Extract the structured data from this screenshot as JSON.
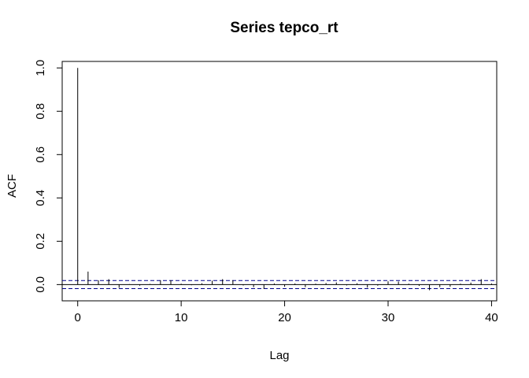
{
  "chart_data": {
    "type": "bar",
    "title": "Series  tepco_rt",
    "xlabel": "Lag",
    "ylabel": "ACF",
    "xlim": [
      -1.5,
      40.5
    ],
    "ylim": [
      -0.075,
      1.03
    ],
    "xticks": [
      0,
      10,
      20,
      30,
      40
    ],
    "yticks": [
      0.0,
      0.2,
      0.4,
      0.6,
      0.8,
      1.0
    ],
    "xtick_labels": [
      "0",
      "10",
      "20",
      "30",
      "40"
    ],
    "ytick_labels": [
      "0.0",
      "0.2",
      "0.4",
      "0.6",
      "0.8",
      "1.0"
    ],
    "confidence_bound": 0.0185,
    "lags": [
      0,
      1,
      2,
      3,
      4,
      5,
      6,
      7,
      8,
      9,
      10,
      11,
      12,
      13,
      14,
      15,
      16,
      17,
      18,
      19,
      20,
      21,
      22,
      23,
      24,
      25,
      26,
      27,
      28,
      29,
      30,
      31,
      32,
      33,
      34,
      35,
      36,
      37,
      38,
      39,
      40
    ],
    "acf": [
      1.0,
      0.06,
      0.02,
      0.025,
      -0.015,
      0.002,
      -0.005,
      0.003,
      0.02,
      0.02,
      0.004,
      -0.003,
      0.006,
      0.018,
      0.025,
      0.02,
      -0.004,
      -0.012,
      -0.02,
      0.005,
      -0.01,
      0.005,
      -0.012,
      0.004,
      0.007,
      0.01,
      -0.004,
      0.006,
      -0.014,
      -0.005,
      0.015,
      0.014,
      0.004,
      -0.006,
      -0.026,
      -0.012,
      -0.01,
      0.004,
      0.009,
      0.025,
      0.005
    ],
    "grid": false,
    "line_color": "#000000",
    "bound_color": "#00008b"
  }
}
